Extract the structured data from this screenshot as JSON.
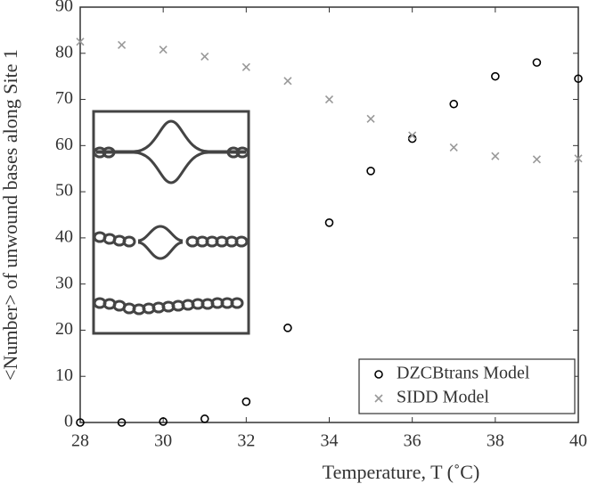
{
  "chart_data": {
    "type": "scatter",
    "x_label": "Temperature, T (˚C)",
    "y_label": "<Number> of unwound bases along Site 1",
    "x": [
      28,
      29,
      30,
      31,
      32,
      33,
      34,
      35,
      36,
      37,
      38,
      39,
      40
    ],
    "series": [
      {
        "name": "DZCBtrans Model",
        "color": "#000000",
        "marker": "circle",
        "values": [
          0,
          0,
          0.2,
          0.8,
          4.5,
          20.5,
          43.3,
          54.5,
          61.5,
          69,
          75,
          78,
          74.5
        ]
      },
      {
        "name": "SIDD Model",
        "color": "#999999",
        "marker": "x",
        "values": [
          82.5,
          81.8,
          80.8,
          79.3,
          77,
          74,
          70,
          65.8,
          62.2,
          59.6,
          57.7,
          57,
          57.2
        ]
      }
    ],
    "xlim": [
      28,
      40
    ],
    "xticks": [
      28,
      30,
      32,
      34,
      36,
      38,
      40
    ],
    "ylim": [
      0,
      90
    ],
    "yticks": [
      0,
      10,
      20,
      30,
      40,
      50,
      60,
      70,
      80,
      90
    ],
    "legend": "lower right"
  }
}
